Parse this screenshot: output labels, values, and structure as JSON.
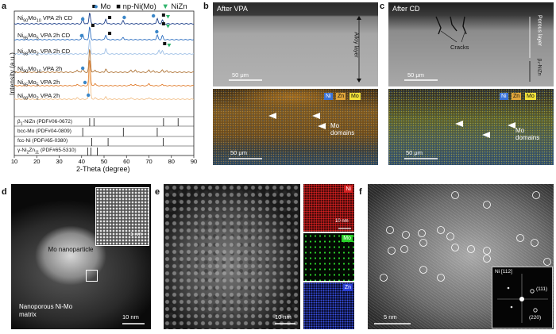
{
  "panel_letters": {
    "a": "a",
    "b": "b",
    "c": "c",
    "d": "d",
    "e": "e",
    "f": "f"
  },
  "xrd": {
    "legend": [
      {
        "symbol": "●",
        "label": "Mo",
        "color": "#3a86c8"
      },
      {
        "symbol": "■",
        "label": "np-Ni(Mo)",
        "color": "#111111"
      },
      {
        "symbol": "▼",
        "label": "NiZn",
        "color": "#2fb36b"
      }
    ],
    "xlabel": "2-Theta (degree)",
    "ylabel": "Intensity (a.u.)",
    "xticks": [
      "10",
      "20",
      "30",
      "40",
      "50",
      "60",
      "70",
      "80",
      "90"
    ],
    "traces": [
      {
        "base": "Ni",
        "a": "90",
        "b": "Mo",
        "c": "10",
        "d": " VPA 2h CD",
        "color": "#1d3f8a"
      },
      {
        "base": "Ni",
        "a": "95",
        "b": "Mo",
        "c": "5",
        "d": " VPA 2h CD",
        "color": "#2e6fc0"
      },
      {
        "base": "Ni",
        "a": "98",
        "b": "Mo",
        "c": "2",
        "d": " VPA 2h CD",
        "color": "#9fc0e6"
      },
      {
        "base": "Ni",
        "a": "90",
        "b": "Mo",
        "c": "10",
        "d": " VPA 2h",
        "color": "#b0763a"
      },
      {
        "base": "Ni",
        "a": "95",
        "b": "Mo",
        "c": "5",
        "d": " VPA 2h",
        "color": "#e07b2a"
      },
      {
        "base": "Ni",
        "a": "98",
        "b": "Mo",
        "c": "2",
        "d": " VPA 2h",
        "color": "#f2c08a"
      }
    ],
    "references": [
      {
        "pre": "β",
        "sub1": "1",
        "rest": "-NiZn (PDF#06-0672)"
      },
      {
        "pre": "",
        "sub1": "",
        "rest": "bcc-Mo (PDF#04-0809)"
      },
      {
        "pre": "",
        "sub1": "",
        "rest": "fcc-Ni (PDF#65-0380)"
      },
      {
        "pre": "γ-Ni",
        "sub1": "2",
        "rest": "Zn",
        "sub2": "11",
        "rest2": " (PDF#65-5310)"
      }
    ]
  },
  "panel_b": {
    "title": "After VPA",
    "layer": "Alloy layer",
    "scale1": "50 μm",
    "scale2": "50 μm",
    "map_label": "Mo domains",
    "legend": [
      "Ni",
      "Zn",
      "Mo"
    ]
  },
  "panel_c": {
    "title": "After CD",
    "layer": "Porous layer",
    "layer2": "β₁-NiZn",
    "cracks": "Cracks",
    "scale1": "50 μm",
    "scale2": "50 μm",
    "map_label": "Mo domains",
    "legend": [
      "Ni",
      "Zn",
      "Mo"
    ]
  },
  "panel_d": {
    "particle": "Mo nanoparticle",
    "matrix": "Nanoporous Ni-Mo matrix",
    "inset_scale": "1 nm",
    "scale": "10 nm"
  },
  "panel_e": {
    "scale": "10 nm",
    "map_scale": "10 nm",
    "maps": [
      {
        "label": "Ni",
        "color": "#d42020"
      },
      {
        "label": "Mo",
        "color": "#2bd12b"
      },
      {
        "label": "Zn",
        "color": "#2a3fd6"
      }
    ]
  },
  "panel_f": {
    "scale": "5 nm",
    "zone": "Ni [112]",
    "spot1": "(111)",
    "spot2": "(220)"
  }
}
